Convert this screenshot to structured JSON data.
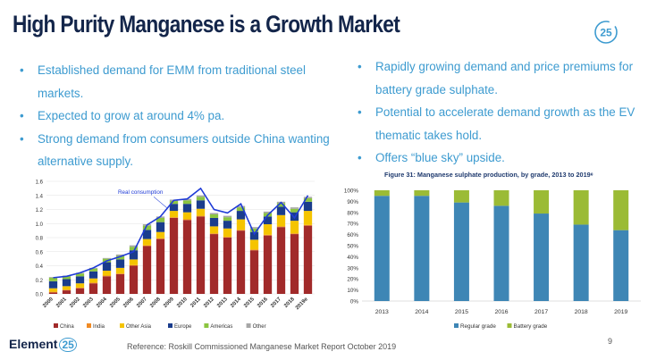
{
  "slide": {
    "title": "High Purity Manganese is a Growth Market",
    "logo_text": "25",
    "page_number": "9",
    "footer_brand": "Element",
    "footer_brand_num": "25",
    "reference": "Reference: Roskill Commissioned Manganese Market Report October 2019",
    "accent_color": "#3d9bd0",
    "title_color": "#13254a"
  },
  "left_bullets": [
    "Established demand for EMM from traditional steel markets.",
    "Expected to grow at around 4% pa.",
    "Strong demand from consumers outside China wanting alternative supply."
  ],
  "right_bullets": [
    "Rapidly growing demand and price premiums for battery grade sulphate.",
    "Potential to accelerate demand growth as the EV thematic takes hold.",
    "Offers “blue sky” upside."
  ],
  "chart_data": [
    {
      "type": "bar",
      "stacked": true,
      "title": "",
      "annotation": "Real consumption",
      "categories": [
        "2000",
        "2001",
        "2002",
        "2003",
        "2004",
        "2005",
        "2006",
        "2007",
        "2008",
        "2009",
        "2010",
        "2011",
        "2012",
        "2013",
        "2014",
        "2015",
        "2016",
        "2017",
        "2018",
        "2019e"
      ],
      "ylim": [
        0,
        1.6
      ],
      "yticks": [
        "0.0",
        "0.2",
        "0.4",
        "0.6",
        "0.8",
        "1.0",
        "1.2",
        "1.4",
        "1.6"
      ],
      "series": [
        {
          "name": "China",
          "color": "#a12a2a",
          "values": [
            0.02,
            0.05,
            0.08,
            0.15,
            0.25,
            0.28,
            0.4,
            0.68,
            0.78,
            1.08,
            1.05,
            1.1,
            0.85,
            0.8,
            0.9,
            0.62,
            0.83,
            0.95,
            0.85,
            0.97
          ]
        },
        {
          "name": "India",
          "color": "#f08a24",
          "values": [
            0.01,
            0.01,
            0.01,
            0.01,
            0.01,
            0.01,
            0.01,
            0.01,
            0.01,
            0.01,
            0.01,
            0.01,
            0.01,
            0.01,
            0.01,
            0.01,
            0.01,
            0.01,
            0.01,
            0.01
          ]
        },
        {
          "name": "Other Asia",
          "color": "#f5c400",
          "values": [
            0.05,
            0.05,
            0.06,
            0.06,
            0.07,
            0.08,
            0.08,
            0.09,
            0.09,
            0.09,
            0.1,
            0.1,
            0.1,
            0.12,
            0.15,
            0.14,
            0.15,
            0.16,
            0.18,
            0.2
          ]
        },
        {
          "name": "Europe",
          "color": "#1a3c8c",
          "values": [
            0.1,
            0.1,
            0.1,
            0.1,
            0.12,
            0.12,
            0.13,
            0.13,
            0.14,
            0.1,
            0.12,
            0.12,
            0.12,
            0.11,
            0.12,
            0.11,
            0.11,
            0.12,
            0.12,
            0.13
          ]
        },
        {
          "name": "Americas",
          "color": "#8bc540",
          "values": [
            0.05,
            0.04,
            0.04,
            0.04,
            0.05,
            0.05,
            0.05,
            0.06,
            0.06,
            0.04,
            0.05,
            0.05,
            0.05,
            0.05,
            0.05,
            0.05,
            0.05,
            0.05,
            0.05,
            0.05
          ]
        },
        {
          "name": "Other",
          "color": "#a6a6a6",
          "values": [
            0.01,
            0.01,
            0.01,
            0.01,
            0.01,
            0.02,
            0.02,
            0.02,
            0.02,
            0.02,
            0.02,
            0.02,
            0.02,
            0.02,
            0.02,
            0.02,
            0.02,
            0.02,
            0.02,
            0.02
          ]
        }
      ],
      "line": {
        "name": "Real consumption",
        "color": "#1f3bd6",
        "values": [
          0.23,
          0.25,
          0.3,
          0.37,
          0.47,
          0.53,
          0.6,
          0.98,
          1.1,
          1.33,
          1.35,
          1.5,
          1.2,
          1.15,
          1.28,
          0.85,
          1.12,
          1.3,
          1.08,
          1.4
        ]
      }
    },
    {
      "type": "bar",
      "stacked": true,
      "title": "Figure 31: Manganese sulphate production, by grade, 2013 to 2019ᵉ",
      "categories": [
        "2013",
        "2014",
        "2015",
        "2016",
        "2017",
        "2018",
        "2019"
      ],
      "ylim": [
        0,
        100
      ],
      "yticks": [
        "0%",
        "10%",
        "20%",
        "30%",
        "40%",
        "50%",
        "60%",
        "70%",
        "80%",
        "90%",
        "100%"
      ],
      "series": [
        {
          "name": "Regular grade",
          "color": "#3e86b5",
          "values": [
            95,
            95,
            89,
            86,
            79,
            69,
            64
          ]
        },
        {
          "name": "Battery grade",
          "color": "#9bbb35",
          "values": [
            5,
            5,
            11,
            14,
            21,
            31,
            36
          ]
        }
      ]
    }
  ]
}
